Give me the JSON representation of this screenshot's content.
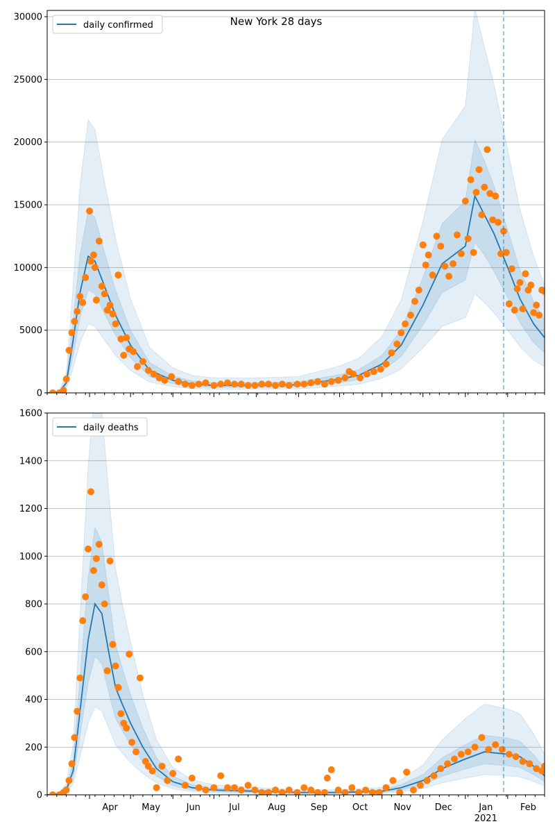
{
  "figure_title": "New York 28 days",
  "colors": {
    "model_line": "#1f77b4",
    "observed_points": "#ff7f0e",
    "band": "#1f77b4",
    "grid": "#b0b0b0",
    "marker_line": "#1f77b4"
  },
  "x_axis": {
    "start_date": "2020-03-01",
    "end_date": "2021-02-28",
    "month_labels": [
      {
        "date": "2020-04-01",
        "label": "Apr"
      },
      {
        "date": "2020-05-01",
        "label": "May"
      },
      {
        "date": "2020-06-01",
        "label": "Jun"
      },
      {
        "date": "2020-07-01",
        "label": "Jul"
      },
      {
        "date": "2020-08-01",
        "label": "Aug"
      },
      {
        "date": "2020-09-01",
        "label": "Sep"
      },
      {
        "date": "2020-10-01",
        "label": "Oct"
      },
      {
        "date": "2020-11-01",
        "label": "Nov"
      },
      {
        "date": "2020-12-01",
        "label": "Dec"
      },
      {
        "date": "2021-01-01",
        "label": "Jan"
      },
      {
        "date": "2021-02-01",
        "label": "Feb"
      }
    ],
    "year_label": {
      "date": "2021-01-01",
      "label": "2021"
    },
    "vertical_marker_date": "2021-01-29"
  },
  "chart_data": [
    {
      "type": "line",
      "title": "",
      "legend": {
        "label": "daily confirmed",
        "placement": "top-left"
      },
      "ylim": [
        0,
        30500
      ],
      "yticks": [
        0,
        5000,
        10000,
        15000,
        20000,
        25000,
        30000
      ],
      "grid": "horizontal",
      "model": {
        "name": "daily confirmed",
        "x": [
          "2020-03-01",
          "2020-03-10",
          "2020-03-15",
          "2020-03-20",
          "2020-03-25",
          "2020-03-31",
          "2020-04-05",
          "2020-04-12",
          "2020-04-20",
          "2020-05-01",
          "2020-05-15",
          "2020-06-01",
          "2020-06-15",
          "2020-07-01",
          "2020-08-01",
          "2020-09-01",
          "2020-10-01",
          "2020-10-15",
          "2020-11-01",
          "2020-11-15",
          "2020-12-01",
          "2020-12-15",
          "2021-01-01",
          "2021-01-08",
          "2021-01-15",
          "2021-01-22",
          "2021-02-01",
          "2021-02-10",
          "2021-02-20",
          "2021-02-28"
        ],
        "y": [
          0,
          100,
          800,
          4200,
          8000,
          10900,
          10500,
          8500,
          6200,
          3800,
          1800,
          1000,
          700,
          600,
          600,
          650,
          1100,
          1400,
          2300,
          3800,
          7000,
          10300,
          11700,
          15700,
          14200,
          12700,
          10000,
          7500,
          5500,
          4400
        ],
        "inner_band": {
          "lower": [
            0,
            70,
            550,
            3000,
            6000,
            8200,
            7900,
            6300,
            4600,
            2800,
            1300,
            750,
            520,
            450,
            450,
            480,
            820,
            1050,
            1750,
            2900,
            5400,
            8000,
            9000,
            12000,
            11000,
            9700,
            7600,
            5600,
            4000,
            3200
          ],
          "upper": [
            0,
            140,
            1100,
            5800,
            11000,
            14500,
            14000,
            11200,
            8200,
            5000,
            2400,
            1350,
            950,
            800,
            800,
            870,
            1450,
            1850,
            3000,
            5000,
            9200,
            13500,
            15300,
            20200,
            18500,
            16500,
            13000,
            9800,
            7300,
            5800
          ]
        },
        "outer_band": {
          "lower": [
            0,
            40,
            350,
            2000,
            4000,
            5500,
            5300,
            4200,
            3000,
            1800,
            850,
            500,
            340,
            300,
            300,
            320,
            550,
            700,
            1150,
            1900,
            3600,
            5300,
            6000,
            7900,
            7200,
            6400,
            5000,
            3700,
            2600,
            2100
          ],
          "upper": [
            0,
            200,
            1600,
            8500,
            16500,
            21800,
            21000,
            16800,
            12300,
            7500,
            3600,
            2000,
            1400,
            1200,
            1200,
            1300,
            2150,
            2750,
            4500,
            7400,
            13700,
            20200,
            22900,
            30700,
            27600,
            24600,
            19400,
            14600,
            10900,
            8600
          ]
        }
      },
      "observed": {
        "x": [
          "2020-03-05",
          "2020-03-10",
          "2020-03-13",
          "2020-03-15",
          "2020-03-17",
          "2020-03-19",
          "2020-03-21",
          "2020-03-23",
          "2020-03-25",
          "2020-03-27",
          "2020-03-29",
          "2020-04-01",
          "2020-04-02",
          "2020-04-04",
          "2020-04-05",
          "2020-04-06",
          "2020-04-08",
          "2020-04-10",
          "2020-04-12",
          "2020-04-14",
          "2020-04-16",
          "2020-04-18",
          "2020-04-20",
          "2020-04-22",
          "2020-04-24",
          "2020-04-26",
          "2020-04-28",
          "2020-04-30",
          "2020-05-03",
          "2020-05-06",
          "2020-05-10",
          "2020-05-14",
          "2020-05-18",
          "2020-05-22",
          "2020-05-26",
          "2020-05-31",
          "2020-06-05",
          "2020-06-10",
          "2020-06-15",
          "2020-06-20",
          "2020-06-25",
          "2020-07-01",
          "2020-07-06",
          "2020-07-11",
          "2020-07-16",
          "2020-07-21",
          "2020-07-26",
          "2020-07-31",
          "2020-08-05",
          "2020-08-10",
          "2020-08-15",
          "2020-08-20",
          "2020-08-25",
          "2020-08-31",
          "2020-09-05",
          "2020-09-10",
          "2020-09-15",
          "2020-09-20",
          "2020-09-25",
          "2020-09-30",
          "2020-10-05",
          "2020-10-08",
          "2020-10-11",
          "2020-10-16",
          "2020-10-21",
          "2020-10-26",
          "2020-10-31",
          "2020-11-04",
          "2020-11-08",
          "2020-11-12",
          "2020-11-15",
          "2020-11-18",
          "2020-11-22",
          "2020-11-25",
          "2020-11-28",
          "2020-12-01",
          "2020-12-03",
          "2020-12-05",
          "2020-12-08",
          "2020-12-11",
          "2020-12-14",
          "2020-12-17",
          "2020-12-20",
          "2020-12-23",
          "2020-12-26",
          "2020-12-29",
          "2021-01-01",
          "2021-01-03",
          "2021-01-05",
          "2021-01-07",
          "2021-01-09",
          "2021-01-11",
          "2021-01-13",
          "2021-01-15",
          "2021-01-17",
          "2021-01-19",
          "2021-01-21",
          "2021-01-23",
          "2021-01-25",
          "2021-01-27",
          "2021-01-29",
          "2021-01-31",
          "2021-02-02",
          "2021-02-04",
          "2021-02-06",
          "2021-02-08",
          "2021-02-10",
          "2021-02-12",
          "2021-02-14",
          "2021-02-16",
          "2021-02-18",
          "2021-02-20",
          "2021-02-22",
          "2021-02-24",
          "2021-02-26",
          "2021-02-28"
        ],
        "y": [
          0,
          0,
          200,
          1100,
          3400,
          4800,
          5700,
          6500,
          7700,
          7200,
          9200,
          14500,
          10500,
          11000,
          10000,
          7400,
          12100,
          8500,
          7900,
          6600,
          7000,
          6300,
          5500,
          9400,
          4300,
          3000,
          4400,
          3500,
          3300,
          2100,
          2500,
          1800,
          1500,
          1200,
          1000,
          1300,
          900,
          700,
          600,
          700,
          800,
          600,
          700,
          800,
          700,
          700,
          600,
          600,
          700,
          700,
          600,
          700,
          600,
          700,
          700,
          800,
          900,
          700,
          900,
          1000,
          1200,
          1700,
          1500,
          1200,
          1500,
          1700,
          1900,
          2300,
          3200,
          3900,
          4800,
          5500,
          6200,
          7300,
          8200,
          11800,
          10200,
          11000,
          9400,
          12500,
          11700,
          10100,
          9300,
          10300,
          12600,
          11100,
          15300,
          12300,
          17000,
          11200,
          16000,
          17800,
          14200,
          16400,
          19400,
          15900,
          13800,
          15700,
          13600,
          11100,
          12900,
          11200,
          7100,
          9900,
          6600,
          8300,
          8800,
          6700,
          9500,
          8200,
          8600,
          6400,
          7000,
          6200,
          8200,
          8100
        ]
      }
    },
    {
      "type": "line",
      "title": "",
      "legend": {
        "label": "daily deaths",
        "placement": "top-left"
      },
      "ylim": [
        0,
        1600
      ],
      "yticks": [
        0,
        200,
        400,
        600,
        800,
        1000,
        1200,
        1400,
        1600
      ],
      "grid": "horizontal",
      "model": {
        "name": "daily deaths",
        "x": [
          "2020-03-01",
          "2020-03-10",
          "2020-03-15",
          "2020-03-20",
          "2020-03-25",
          "2020-03-31",
          "2020-04-05",
          "2020-04-10",
          "2020-04-15",
          "2020-04-20",
          "2020-04-25",
          "2020-05-01",
          "2020-05-10",
          "2020-05-20",
          "2020-06-01",
          "2020-06-15",
          "2020-07-01",
          "2020-08-01",
          "2020-09-01",
          "2020-10-01",
          "2020-11-01",
          "2020-11-15",
          "2020-12-01",
          "2020-12-15",
          "2021-01-01",
          "2021-01-15",
          "2021-02-01",
          "2021-02-10",
          "2021-02-20",
          "2021-02-28"
        ],
        "y": [
          0,
          5,
          20,
          100,
          350,
          650,
          800,
          760,
          600,
          450,
          380,
          300,
          200,
          110,
          55,
          30,
          20,
          15,
          10,
          10,
          15,
          30,
          60,
          110,
          150,
          180,
          170,
          160,
          120,
          80
        ],
        "inner_band": {
          "lower": [
            0,
            3,
            13,
            70,
            250,
            470,
            580,
            550,
            430,
            320,
            270,
            210,
            140,
            78,
            38,
            20,
            13,
            10,
            7,
            7,
            10,
            20,
            42,
            78,
            108,
            130,
            122,
            114,
            85,
            56
          ],
          "upper": [
            0,
            8,
            30,
            140,
            490,
            910,
            1120,
            1060,
            840,
            630,
            530,
            420,
            280,
            155,
            78,
            43,
            28,
            21,
            14,
            14,
            21,
            43,
            85,
            155,
            210,
            250,
            238,
            224,
            168,
            112
          ]
        },
        "outer_band": {
          "lower": [
            0,
            2,
            8,
            45,
            160,
            300,
            370,
            350,
            280,
            210,
            175,
            135,
            90,
            50,
            25,
            13,
            8,
            6,
            4,
            4,
            6,
            13,
            27,
            50,
            70,
            85,
            80,
            75,
            56,
            37
          ],
          "upper": [
            0,
            12,
            45,
            210,
            740,
            1380,
            1700,
            1610,
            1270,
            950,
            800,
            640,
            420,
            230,
            115,
            63,
            42,
            31,
            21,
            21,
            31,
            63,
            125,
            230,
            320,
            380,
            360,
            340,
            255,
            170
          ]
        }
      },
      "observed": {
        "x": [
          "2020-03-05",
          "2020-03-10",
          "2020-03-13",
          "2020-03-15",
          "2020-03-17",
          "2020-03-19",
          "2020-03-21",
          "2020-03-23",
          "2020-03-25",
          "2020-03-27",
          "2020-03-29",
          "2020-03-31",
          "2020-04-02",
          "2020-04-04",
          "2020-04-06",
          "2020-04-08",
          "2020-04-10",
          "2020-04-12",
          "2020-04-14",
          "2020-04-16",
          "2020-04-18",
          "2020-04-20",
          "2020-04-22",
          "2020-04-24",
          "2020-04-26",
          "2020-04-28",
          "2020-04-30",
          "2020-05-02",
          "2020-05-05",
          "2020-05-08",
          "2020-05-12",
          "2020-05-14",
          "2020-05-17",
          "2020-05-20",
          "2020-05-24",
          "2020-05-28",
          "2020-06-01",
          "2020-06-05",
          "2020-06-10",
          "2020-06-15",
          "2020-06-20",
          "2020-06-25",
          "2020-07-01",
          "2020-07-06",
          "2020-07-11",
          "2020-07-16",
          "2020-07-21",
          "2020-07-26",
          "2020-07-31",
          "2020-08-05",
          "2020-08-10",
          "2020-08-15",
          "2020-08-20",
          "2020-08-25",
          "2020-08-31",
          "2020-09-05",
          "2020-09-10",
          "2020-09-15",
          "2020-09-20",
          "2020-09-22",
          "2020-09-25",
          "2020-09-30",
          "2020-10-05",
          "2020-10-10",
          "2020-10-15",
          "2020-10-20",
          "2020-10-25",
          "2020-10-30",
          "2020-11-04",
          "2020-11-09",
          "2020-11-14",
          "2020-11-19",
          "2020-11-24",
          "2020-11-29",
          "2020-12-04",
          "2020-12-09",
          "2020-12-14",
          "2020-12-19",
          "2020-12-24",
          "2020-12-29",
          "2021-01-03",
          "2021-01-08",
          "2021-01-13",
          "2021-01-18",
          "2021-01-23",
          "2021-01-28",
          "2021-02-02",
          "2021-02-07",
          "2021-02-12",
          "2021-02-17",
          "2021-02-22",
          "2021-02-26",
          "2021-02-28"
        ],
        "y": [
          0,
          0,
          10,
          20,
          60,
          130,
          240,
          350,
          490,
          730,
          830,
          1030,
          1270,
          940,
          990,
          1050,
          880,
          800,
          520,
          980,
          630,
          540,
          450,
          340,
          300,
          280,
          590,
          220,
          180,
          490,
          140,
          120,
          100,
          30,
          120,
          60,
          90,
          150,
          40,
          70,
          30,
          20,
          30,
          80,
          30,
          30,
          20,
          40,
          20,
          10,
          10,
          20,
          10,
          20,
          10,
          30,
          20,
          10,
          10,
          70,
          105,
          20,
          10,
          30,
          10,
          20,
          10,
          10,
          30,
          60,
          10,
          95,
          20,
          40,
          60,
          80,
          110,
          130,
          150,
          170,
          180,
          200,
          240,
          190,
          210,
          190,
          170,
          160,
          140,
          130,
          110,
          100,
          120
        ]
      }
    }
  ]
}
